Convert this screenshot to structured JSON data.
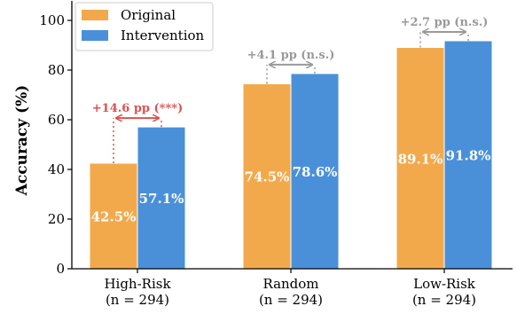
{
  "chart_data": {
    "type": "bar",
    "categories": [
      "High-Risk",
      "Random",
      "Low-Risk"
    ],
    "category_subtitles": [
      "(n = 294)",
      "(n = 294)",
      "(n = 294)"
    ],
    "series": [
      {
        "name": "Original",
        "color": "#f2a94c",
        "values": [
          42.5,
          74.5,
          89.1
        ],
        "labels": [
          "42.5%",
          "74.5%",
          "89.1%"
        ]
      },
      {
        "name": "Intervention",
        "color": "#4a90d9",
        "values": [
          57.1,
          78.6,
          91.8
        ],
        "labels": [
          "57.1%",
          "78.6%",
          "91.8%"
        ]
      }
    ],
    "ylabel": "Accuracy (%)",
    "ylim": [
      0,
      105
    ],
    "yticks": [
      0,
      20,
      40,
      60,
      80,
      100
    ],
    "legend_position": "top-left",
    "annotations": [
      {
        "text": "+14.6 pp (***)",
        "color": "#d9534f",
        "category": 0
      },
      {
        "text": "+4.1 pp (n.s.)",
        "color": "#999999",
        "category": 1
      },
      {
        "text": "+2.7 pp (n.s.)",
        "color": "#999999",
        "category": 2
      }
    ]
  }
}
